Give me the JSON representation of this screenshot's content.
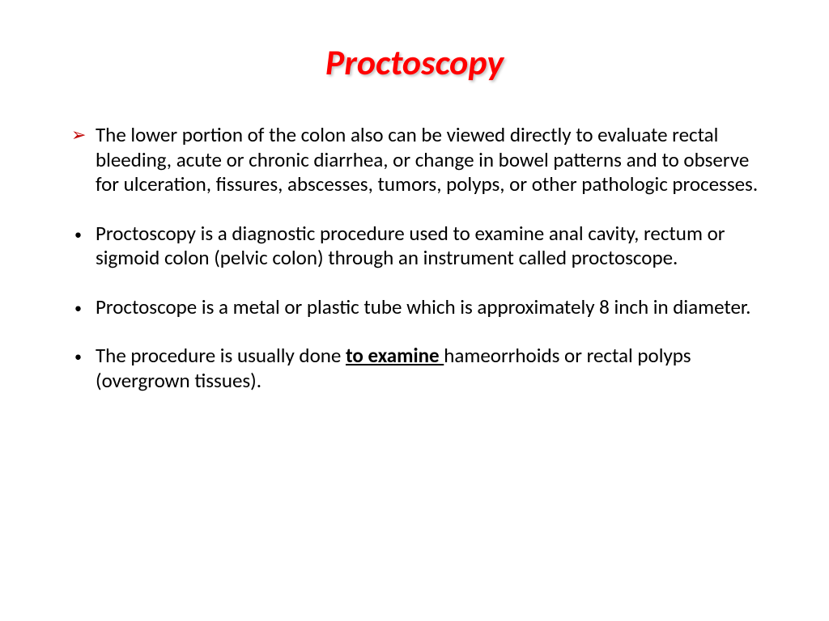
{
  "slide": {
    "title": "Proctoscopy",
    "title_color": "#ff0000",
    "title_fontsize": 44,
    "background_color": "#ffffff",
    "bullets": [
      {
        "marker": "arrow",
        "text": "The lower portion of the colon also can be viewed directly to evaluate rectal bleeding, acute or chronic diarrhea, or change in bowel patterns and to observe for ulceration, fissures, abscesses, tumors, polyps, or other pathologic processes."
      },
      {
        "marker": "dot",
        "text": "Proctoscopy is a diagnostic procedure used  to examine anal cavity, rectum or sigmoid colon (pelvic colon) through an instrument called proctoscope."
      },
      {
        "marker": "dot",
        "text": "Proctoscope is a metal or plastic tube which is approximately 8 inch in diameter."
      },
      {
        "marker": "dot",
        "text_pre": "The procedure is usually done ",
        "text_emph": "to examine ",
        "text_post": "hameorrhoids or rectal polyps (overgrown tissues)."
      }
    ],
    "body_fontsize": 25,
    "body_color": "#000000",
    "arrow_color": "#c00000"
  }
}
